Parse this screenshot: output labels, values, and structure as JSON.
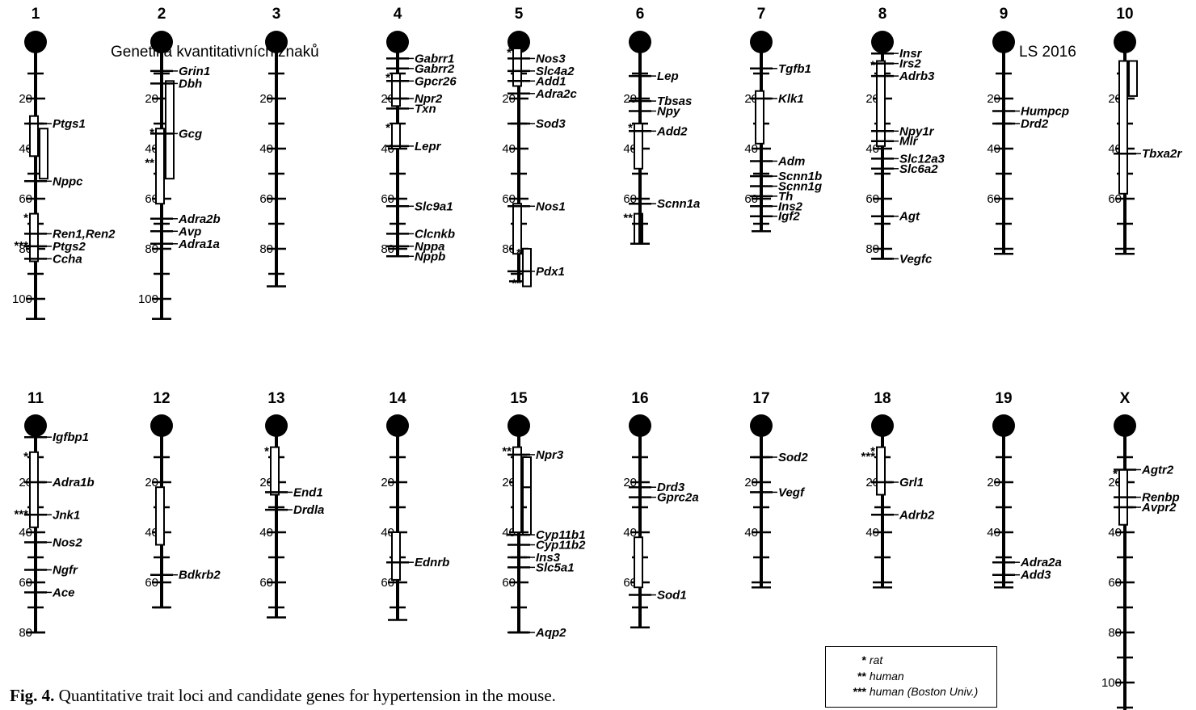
{
  "header": {
    "left": "Genetika kvantitativních znaků",
    "right": "LS 2016"
  },
  "caption": {
    "prefix": "Fig. 4.",
    "text": " Quantitative trait loci and candidate genes for hypertension in the mouse."
  },
  "legend": [
    {
      "marker": "*",
      "label": "rat"
    },
    {
      "marker": "**",
      "label": "human"
    },
    {
      "marker": "***",
      "label": "human (Boston Univ.)"
    }
  ],
  "chromosomes": [
    {
      "name": "1",
      "length": 108,
      "ticks": [
        20,
        40,
        60,
        80,
        100
      ],
      "genes": [
        {
          "label": "Ptgs1",
          "pos": 30
        },
        {
          "label": "Nppc",
          "pos": 53
        },
        {
          "label": "Ren1,Ren2",
          "pos": 74
        },
        {
          "label": "Ptgs2",
          "pos": 79
        },
        {
          "label": "Ccha",
          "pos": 84
        }
      ],
      "qtls": [
        {
          "start": 27,
          "end": 43,
          "col": 0,
          "marker": ""
        },
        {
          "start": 32,
          "end": 52,
          "col": 1,
          "marker": ""
        },
        {
          "start": 66,
          "end": 85,
          "col": 0,
          "marker": "*"
        },
        {
          "start": 79,
          "end": 79,
          "col": 0,
          "marker": "***"
        }
      ]
    },
    {
      "name": "2",
      "length": 108,
      "ticks": [
        20,
        40,
        60,
        80,
        100
      ],
      "genes": [
        {
          "label": "Grin1",
          "pos": 9
        },
        {
          "label": "Dbh",
          "pos": 14
        },
        {
          "label": "Gcg",
          "pos": 34
        },
        {
          "label": "Adra2b",
          "pos": 68
        },
        {
          "label": "Avp",
          "pos": 73
        },
        {
          "label": "Adra1a",
          "pos": 78
        }
      ],
      "qtls": [
        {
          "start": 13,
          "end": 52,
          "col": 1,
          "marker": ""
        },
        {
          "start": 32,
          "end": 62,
          "col": 0,
          "marker": "*"
        },
        {
          "start": 46,
          "end": 46,
          "col": 0,
          "marker": "**"
        }
      ]
    },
    {
      "name": "3",
      "length": 95,
      "ticks": [
        20,
        40,
        60,
        80
      ],
      "genes": [],
      "qtls": []
    },
    {
      "name": "4",
      "length": 83,
      "ticks": [
        20,
        40,
        60,
        80
      ],
      "genes": [
        {
          "label": "Gabrr1",
          "pos": 4
        },
        {
          "label": "Gabrr2",
          "pos": 8
        },
        {
          "label": "Gpcr26",
          "pos": 13
        },
        {
          "label": "Npr2",
          "pos": 20
        },
        {
          "label": "Txn",
          "pos": 24
        },
        {
          "label": "Lepr",
          "pos": 39
        },
        {
          "label": "Slc9a1",
          "pos": 63
        },
        {
          "label": "Clcnkb",
          "pos": 74
        },
        {
          "label": "Nppa",
          "pos": 79
        },
        {
          "label": "Nppb",
          "pos": 83
        }
      ],
      "qtls": [
        {
          "start": 10,
          "end": 23,
          "col": 0,
          "marker": "*"
        },
        {
          "start": 30,
          "end": 40,
          "col": 0,
          "marker": "*"
        }
      ]
    },
    {
      "name": "5",
      "length": 93,
      "ticks": [
        20,
        40,
        60,
        80
      ],
      "genes": [
        {
          "label": "Nos3",
          "pos": 4
        },
        {
          "label": "Slc4a2",
          "pos": 9
        },
        {
          "label": "Add1",
          "pos": 13
        },
        {
          "label": "Adra2c",
          "pos": 18
        },
        {
          "label": "Sod3",
          "pos": 30
        },
        {
          "label": "Nos1",
          "pos": 63
        },
        {
          "label": "Pdx1",
          "pos": 89
        }
      ],
      "qtls": [
        {
          "start": 0,
          "end": 15,
          "col": 0,
          "marker": "*"
        },
        {
          "start": 62,
          "end": 82,
          "col": 0,
          "marker": ""
        },
        {
          "start": 80,
          "end": 95,
          "col": 1,
          "marker": "*"
        },
        {
          "start": 94,
          "end": 94,
          "col": 1,
          "marker": "**"
        }
      ]
    },
    {
      "name": "6",
      "length": 78,
      "ticks": [
        20,
        40,
        60
      ],
      "genes": [
        {
          "label": "Lep",
          "pos": 11
        },
        {
          "label": "Tbsas",
          "pos": 21
        },
        {
          "label": "Npy",
          "pos": 25
        },
        {
          "label": "Add2",
          "pos": 33
        },
        {
          "label": "Scnn1a",
          "pos": 62
        }
      ],
      "qtls": [
        {
          "start": 30,
          "end": 48,
          "col": 0,
          "marker": "*"
        },
        {
          "start": 66,
          "end": 78,
          "col": 0,
          "marker": "**",
          "open": true
        }
      ]
    },
    {
      "name": "7",
      "length": 73,
      "ticks": [
        20,
        40,
        60
      ],
      "genes": [
        {
          "label": "Tgfb1",
          "pos": 8
        },
        {
          "label": "Klk1",
          "pos": 20
        },
        {
          "label": "Adm",
          "pos": 45
        },
        {
          "label": "Scnn1b",
          "pos": 51
        },
        {
          "label": "Scnn1g",
          "pos": 55
        },
        {
          "label": "Th",
          "pos": 59
        },
        {
          "label": "Ins2",
          "pos": 63
        },
        {
          "label": "Igf2",
          "pos": 67
        }
      ],
      "qtls": [
        {
          "start": 17,
          "end": 38,
          "col": 0,
          "marker": ""
        }
      ]
    },
    {
      "name": "8",
      "length": 84,
      "ticks": [
        20,
        40,
        60,
        80
      ],
      "genes": [
        {
          "label": "Insr",
          "pos": 2
        },
        {
          "label": "Irs2",
          "pos": 6
        },
        {
          "label": "Adrb3",
          "pos": 11
        },
        {
          "label": "Npy1r",
          "pos": 33
        },
        {
          "label": "Mlr",
          "pos": 37
        },
        {
          "label": "Slc12a3",
          "pos": 44
        },
        {
          "label": "Slc6a2",
          "pos": 48
        },
        {
          "label": "Agt",
          "pos": 67
        },
        {
          "label": "Vegfc",
          "pos": 84
        }
      ],
      "qtls": [
        {
          "start": 5,
          "end": 39,
          "col": 0,
          "marker": "*"
        }
      ]
    },
    {
      "name": "9",
      "length": 82,
      "ticks": [
        20,
        40,
        60
      ],
      "genes": [
        {
          "label": "Humpcp",
          "pos": 25
        },
        {
          "label": "Drd2",
          "pos": 30
        }
      ],
      "qtls": []
    },
    {
      "name": "10",
      "length": 82,
      "ticks": [
        20,
        40,
        60
      ],
      "genes": [
        {
          "label": "Tbxa2r",
          "pos": 42
        }
      ],
      "qtls": [
        {
          "start": 5,
          "end": 58,
          "col": 0,
          "marker": ""
        },
        {
          "start": 5,
          "end": 19,
          "col": 1,
          "marker": ""
        }
      ]
    },
    {
      "name": "11",
      "length": 80,
      "ticks": [
        20,
        40,
        60,
        80
      ],
      "genes": [
        {
          "label": "Igfbp1",
          "pos": 2
        },
        {
          "label": "Adra1b",
          "pos": 20
        },
        {
          "label": "Jnk1",
          "pos": 33
        },
        {
          "label": "Nos2",
          "pos": 44
        },
        {
          "label": "Ngfr",
          "pos": 55
        },
        {
          "label": "Ace",
          "pos": 64
        }
      ],
      "qtls": [
        {
          "start": 8,
          "end": 38,
          "col": 0,
          "marker": "*"
        },
        {
          "start": 33,
          "end": 33,
          "col": 0,
          "marker": "***"
        }
      ]
    },
    {
      "name": "12",
      "length": 70,
      "ticks": [
        20,
        40,
        60
      ],
      "genes": [
        {
          "label": "Bdkrb2",
          "pos": 57
        }
      ],
      "qtls": [
        {
          "start": 22,
          "end": 45,
          "col": 0,
          "marker": ""
        }
      ]
    },
    {
      "name": "13",
      "length": 74,
      "ticks": [
        20,
        40,
        60
      ],
      "genes": [
        {
          "label": "End1",
          "pos": 24
        },
        {
          "label": "Drdla",
          "pos": 31
        }
      ],
      "qtls": [
        {
          "start": 6,
          "end": 25,
          "col": 0,
          "marker": "*"
        }
      ]
    },
    {
      "name": "14",
      "length": 75,
      "ticks": [
        20,
        40,
        60
      ],
      "genes": [
        {
          "label": "Ednrb",
          "pos": 52
        }
      ],
      "qtls": [
        {
          "start": 40,
          "end": 59,
          "col": 0,
          "marker": ""
        }
      ]
    },
    {
      "name": "15",
      "length": 80,
      "ticks": [
        20,
        40,
        60
      ],
      "genes": [
        {
          "label": "Npr3",
          "pos": 9
        },
        {
          "label": "Cyp11b1",
          "pos": 41
        },
        {
          "label": "Cyp11b2",
          "pos": 45
        },
        {
          "label": "Ins3",
          "pos": 50
        },
        {
          "label": "Slc5a1",
          "pos": 54
        },
        {
          "label": "Aqp2",
          "pos": 80
        }
      ],
      "qtls": [
        {
          "start": 6,
          "end": 40,
          "col": 0,
          "marker": "**"
        },
        {
          "start": 10,
          "end": 22,
          "col": 1,
          "marker": ""
        },
        {
          "start": 22,
          "end": 41,
          "col": 1,
          "marker": "",
          "open": true
        }
      ]
    },
    {
      "name": "16",
      "length": 78,
      "ticks": [
        20,
        40,
        60
      ],
      "genes": [
        {
          "label": "Drd3",
          "pos": 22
        },
        {
          "label": "Gprc2a",
          "pos": 26
        },
        {
          "label": "Sod1",
          "pos": 65
        }
      ],
      "qtls": [
        {
          "start": 42,
          "end": 62,
          "col": 0,
          "marker": ""
        }
      ]
    },
    {
      "name": "17",
      "length": 62,
      "ticks": [
        20,
        40
      ],
      "genes": [
        {
          "label": "Sod2",
          "pos": 10
        },
        {
          "label": "Vegf",
          "pos": 24
        }
      ],
      "qtls": []
    },
    {
      "name": "18",
      "length": 62,
      "ticks": [
        20,
        40
      ],
      "genes": [
        {
          "label": "Grl1",
          "pos": 20
        },
        {
          "label": "Adrb2",
          "pos": 33
        }
      ],
      "qtls": [
        {
          "start": 6,
          "end": 25,
          "col": 0,
          "marker": "*"
        },
        {
          "start": 10,
          "end": 10,
          "col": 0,
          "marker": "***"
        }
      ]
    },
    {
      "name": "19",
      "length": 62,
      "ticks": [
        20,
        40
      ],
      "genes": [
        {
          "label": "Adra2a",
          "pos": 52
        },
        {
          "label": "Add3",
          "pos": 57
        }
      ],
      "qtls": []
    },
    {
      "name": "X",
      "length": 112,
      "ticks": [
        20,
        40,
        60,
        80,
        100
      ],
      "genes": [
        {
          "label": "Agtr2",
          "pos": 15
        },
        {
          "label": "Renbp",
          "pos": 26
        },
        {
          "label": "Avpr2",
          "pos": 30
        }
      ],
      "qtls": [
        {
          "start": 15,
          "end": 37,
          "col": 0,
          "marker": "*"
        }
      ]
    }
  ],
  "colors": {
    "ink": "#000000",
    "background": "#ffffff"
  }
}
